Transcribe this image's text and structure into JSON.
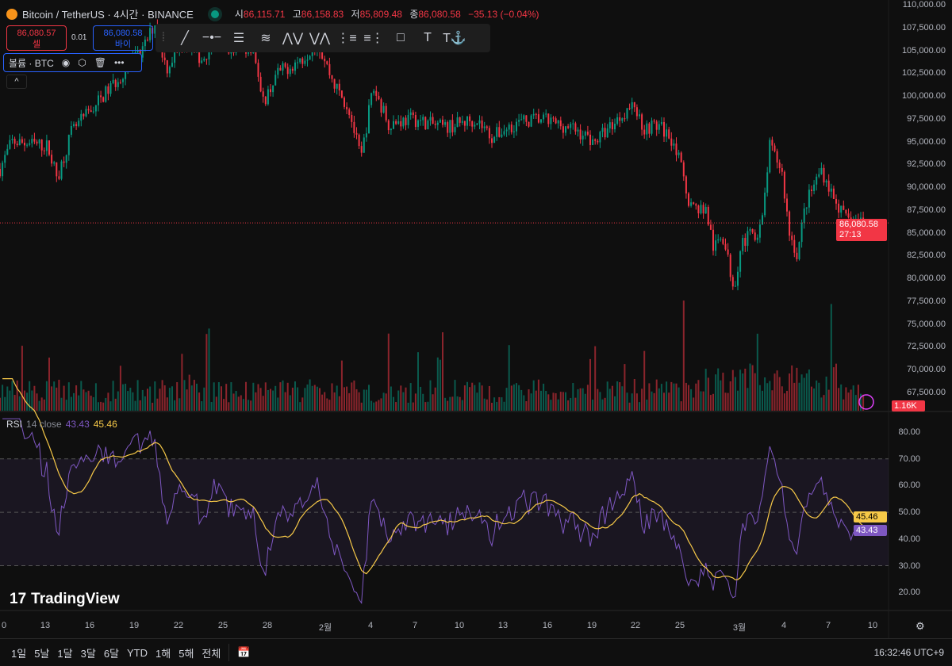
{
  "header": {
    "title": "Bitcoin / TetherUS · 4시간 · BINANCE",
    "ohlc": [
      {
        "k": "시",
        "v": "86,115.71"
      },
      {
        "k": "고",
        "v": "86,158.83"
      },
      {
        "k": "저",
        "v": "85,809.48"
      },
      {
        "k": "종",
        "v": "86,080.58"
      }
    ],
    "change": "−35.13 (−0.04%)"
  },
  "trade": {
    "sell_price": "86,080.57",
    "sell_label": "셀",
    "spread": "0.01",
    "buy_price": "86,080.58",
    "buy_label": "바이"
  },
  "volume_legend": {
    "label": "볼륨 · BTC"
  },
  "toolbar": {
    "icons": [
      "drag-handle-icon",
      "trend-line-icon",
      "horizontal-ray-icon",
      "parallel-channel-icon",
      "fib-icon",
      "xabcd-pattern-icon",
      "abcd-pattern-icon",
      "long-position-icon",
      "short-position-icon",
      "rectangle-icon",
      "text-icon",
      "anchored-text-icon"
    ]
  },
  "price_axis": [
    "110,000.00",
    "107,500.00",
    "105,000.00",
    "102,500.00",
    "100,000.00",
    "97,500.00",
    "95,000.00",
    "92,500.00",
    "90,000.00",
    "87,500.00",
    "85,000.00",
    "82,500.00",
    "80,000.00",
    "77,500.00",
    "75,000.00",
    "72,500.00",
    "70,000.00",
    "67,500.00"
  ],
  "last_price": {
    "value": "86,080.58",
    "countdown": "27:13"
  },
  "volume_value": "1.16K",
  "rsi": {
    "legend_name": "RSI",
    "legend_params": "14 close",
    "rsi_value": "43.43",
    "ma_value": "45.46",
    "axis": [
      "80.00",
      "70.00",
      "60.00",
      "50.00",
      "40.00",
      "30.00",
      "20.00"
    ]
  },
  "time_axis": [
    "0",
    "13",
    "16",
    "19",
    "22",
    "25",
    "28",
    "2월",
    "4",
    "7",
    "10",
    "13",
    "16",
    "19",
    "22",
    "25",
    "3월",
    "4",
    "7",
    "10"
  ],
  "brand": "TradingView",
  "ranges": [
    "1일",
    "5날",
    "1달",
    "3달",
    "6달",
    "YTD",
    "1해",
    "5해",
    "전체"
  ],
  "clock": "16:32:46 UTC+9",
  "colors": {
    "up": "#089981",
    "down": "#f23645",
    "rsi": "#7e57c2",
    "rsi_ma": "#f7c948",
    "buy": "#2962ff"
  },
  "chart_data": {
    "type": "candlestick",
    "symbol": "BTCUSDT",
    "interval": "4h",
    "ylim": [
      67500,
      110000
    ],
    "last_close": 86080.58,
    "price_path": [
      [
        0,
        92000
      ],
      [
        15,
        95000
      ],
      [
        60,
        94500
      ],
      [
        72,
        91000
      ],
      [
        90,
        96000
      ],
      [
        120,
        99000
      ],
      [
        150,
        102000
      ],
      [
        180,
        105000
      ],
      [
        195,
        108000
      ],
      [
        210,
        103000
      ],
      [
        230,
        106000
      ],
      [
        255,
        104000
      ],
      [
        270,
        106000
      ],
      [
        300,
        105000
      ],
      [
        320,
        105500
      ],
      [
        330,
        99000
      ],
      [
        350,
        102500
      ],
      [
        380,
        104000
      ],
      [
        400,
        106000
      ],
      [
        420,
        101500
      ],
      [
        440,
        98500
      ],
      [
        455,
        93000
      ],
      [
        470,
        101000
      ],
      [
        490,
        97000
      ],
      [
        520,
        97500
      ],
      [
        560,
        96500
      ],
      [
        600,
        97500
      ],
      [
        620,
        95500
      ],
      [
        650,
        97000
      ],
      [
        680,
        97500
      ],
      [
        720,
        96500
      ],
      [
        750,
        95000
      ],
      [
        790,
        98500
      ],
      [
        800,
        99000
      ],
      [
        810,
        96500
      ],
      [
        830,
        96800
      ],
      [
        850,
        95000
      ],
      [
        870,
        88000
      ],
      [
        890,
        87500
      ],
      [
        900,
        83000
      ],
      [
        910,
        85000
      ],
      [
        925,
        79000
      ],
      [
        935,
        84000
      ],
      [
        960,
        85500
      ],
      [
        970,
        94500
      ],
      [
        985,
        92000
      ],
      [
        995,
        85000
      ],
      [
        1005,
        82500
      ],
      [
        1015,
        88000
      ],
      [
        1035,
        92000
      ],
      [
        1050,
        89000
      ],
      [
        1065,
        86500
      ],
      [
        1090,
        86080
      ]
    ],
    "rsi_period": 14,
    "rsi_ma_period": 14,
    "rsi_bands": [
      30,
      50,
      70
    ]
  }
}
